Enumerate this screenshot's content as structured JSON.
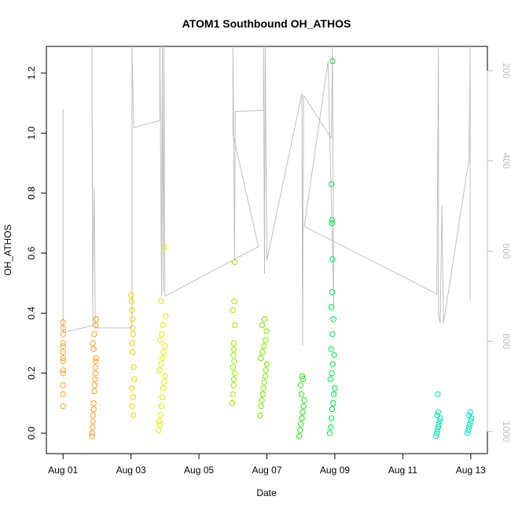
{
  "chart_data": {
    "type": "scatter",
    "title": "ATOM1 Southbound OH_ATHOS",
    "x_label": "Date",
    "y_label": "OH_ATHOS",
    "xlim": [
      0.51,
      13.49
    ],
    "xticks": [
      {
        "value": 1,
        "label": "Aug 01"
      },
      {
        "value": 3,
        "label": "Aug 03"
      },
      {
        "value": 5,
        "label": "Aug 05"
      },
      {
        "value": 7,
        "label": "Aug 07"
      },
      {
        "value": 9,
        "label": "Aug 09"
      },
      {
        "value": 11,
        "label": "Aug 11"
      },
      {
        "value": 13,
        "label": "Aug 13"
      }
    ],
    "ylim": [
      -0.068,
      1.289
    ],
    "yticks": [
      {
        "value": 0,
        "label": "0.0"
      },
      0.2,
      0.4,
      0.6,
      0.8,
      {
        "value": 1,
        "label": "1.0"
      },
      1.2
    ],
    "y2lim": [
      1049,
      146
    ],
    "y2ticks": [
      200,
      400,
      600,
      800,
      1000
    ],
    "groups": [
      {
        "color": "#f4a030",
        "x": [
          1.0,
          1.0,
          1.0,
          1.0,
          1.0,
          1.0,
          1.0,
          1.0,
          1.0,
          1.0,
          1.0,
          1.0,
          1.0
        ],
        "y": [
          0.37,
          0.35,
          0.33,
          0.3,
          0.29,
          0.27,
          0.25,
          0.24,
          0.21,
          0.2,
          0.16,
          0.13,
          0.09
        ]
      },
      {
        "color": "#f5a020",
        "x": [
          1.85,
          1.86,
          1.87,
          1.88,
          1.88,
          1.9,
          1.9,
          1.92,
          1.93,
          1.94,
          1.95,
          1.95,
          1.96,
          1.97,
          1.9,
          1.88,
          1.92,
          1.96,
          1.98
        ],
        "y": [
          -0.01,
          0.0,
          0.02,
          0.04,
          0.06,
          0.08,
          0.1,
          0.14,
          0.16,
          0.18,
          0.2,
          0.22,
          0.24,
          0.25,
          0.28,
          0.3,
          0.33,
          0.36,
          0.38
        ]
      },
      {
        "color": "#ecd000",
        "x": [
          3.0,
          3.02,
          3.03,
          3.04,
          3.05,
          3.06,
          3.03,
          3.05,
          3.08,
          3.1,
          3.02,
          3.06,
          3.04,
          3.07
        ],
        "y": [
          0.46,
          0.44,
          0.41,
          0.38,
          0.35,
          0.33,
          0.3,
          0.27,
          0.22,
          0.18,
          0.15,
          0.12,
          0.09,
          0.06
        ]
      },
      {
        "color": "#d8ec00",
        "x": [
          3.82,
          3.85,
          3.87,
          3.9,
          3.92,
          3.95,
          3.97,
          4.0,
          3.84,
          3.88,
          3.93,
          3.96,
          3.99,
          3.86,
          3.91,
          3.94,
          4.02,
          3.89,
          3.83,
          3.98
        ],
        "y": [
          0.01,
          0.03,
          0.06,
          0.09,
          0.12,
          0.15,
          0.17,
          0.19,
          0.21,
          0.23,
          0.25,
          0.27,
          0.29,
          0.31,
          0.33,
          0.36,
          0.39,
          0.44,
          0.04,
          0.62
        ]
      },
      {
        "color": "#98e800",
        "x": [
          5.98,
          6.0,
          6.02,
          6.03,
          6.05,
          6.0,
          6.04,
          6.01,
          6.03,
          6.02,
          6.06,
          6.0,
          6.04,
          6.05
        ],
        "y": [
          0.1,
          0.13,
          0.16,
          0.18,
          0.2,
          0.22,
          0.24,
          0.26,
          0.28,
          0.3,
          0.36,
          0.41,
          0.44,
          0.57
        ]
      },
      {
        "color": "#78e400",
        "x": [
          6.8,
          6.83,
          6.85,
          6.88,
          6.9,
          6.92,
          6.95,
          6.97,
          7.0,
          6.82,
          6.87,
          6.91,
          6.96,
          6.99,
          6.86,
          6.93
        ],
        "y": [
          0.06,
          0.09,
          0.11,
          0.13,
          0.15,
          0.17,
          0.19,
          0.21,
          0.23,
          0.25,
          0.27,
          0.29,
          0.31,
          0.34,
          0.36,
          0.38
        ]
      },
      {
        "color": "#28e020",
        "x": [
          7.95,
          7.98,
          8.0,
          8.03,
          8.05,
          8.08,
          8.1,
          8.02,
          7.99,
          8.06,
          8.04
        ],
        "y": [
          -0.01,
          0.01,
          0.03,
          0.05,
          0.07,
          0.09,
          0.11,
          0.13,
          0.16,
          0.18,
          0.19
        ]
      },
      {
        "color": "#00e040",
        "x": [
          8.85,
          8.88,
          8.9,
          8.92,
          8.95,
          8.97,
          9.0,
          8.87,
          8.91,
          8.94,
          8.98,
          8.89,
          8.93,
          8.96,
          8.9,
          8.92,
          8.93,
          8.91,
          8.92,
          8.9,
          8.93
        ],
        "y": [
          0.0,
          0.02,
          0.05,
          0.08,
          0.1,
          0.13,
          0.15,
          0.18,
          0.2,
          0.23,
          0.26,
          0.28,
          0.33,
          0.38,
          0.42,
          0.47,
          0.58,
          0.7,
          0.71,
          0.83,
          1.24
        ]
      },
      {
        "color": "#00e0a8",
        "x": [
          11.98,
          12.0,
          12.02,
          12.04,
          12.06,
          12.08,
          12.1,
          12.01,
          12.05,
          12.03
        ],
        "y": [
          -0.01,
          0.0,
          0.01,
          0.02,
          0.03,
          0.04,
          0.05,
          0.06,
          0.07,
          0.13
        ]
      },
      {
        "color": "#00e0c0",
        "x": [
          12.9,
          12.93,
          12.95,
          12.97,
          13.0,
          13.02,
          12.94,
          12.99
        ],
        "y": [
          0.0,
          0.01,
          0.02,
          0.03,
          0.04,
          0.05,
          0.06,
          0.07
        ]
      }
    ],
    "line": {
      "color": "#bebebe",
      "axis": "y2",
      "x": [
        1.0,
        1.0,
        1.88,
        1.85,
        1.87,
        1.92,
        1.95,
        3.03,
        3.03,
        3.08,
        3.85,
        3.85,
        3.9,
        3.92,
        3.95,
        3.97,
        4.0,
        6.75,
        6.0,
        6.0,
        6.05,
        6.07,
        6.9,
        6.9,
        6.93,
        6.95,
        7.0,
        8.03,
        8.05,
        8.08,
        8.9,
        8.93,
        8.97,
        8.8,
        8.1,
        12.0,
        12.05,
        12.05,
        12.1,
        12.15,
        12.2,
        12.95,
        12.98,
        12.98
      ],
      "values": [
        285,
        780,
        765,
        146,
        700,
        460,
        770,
        770,
        146,
        326,
        310,
        146,
        700,
        146,
        690,
        146,
        700,
        590,
        340,
        146,
        620,
        290,
        288,
        146,
        650,
        146,
        620,
        250,
        810,
        255,
        350,
        146,
        720,
        180,
        545,
        695,
        146,
        740,
        760,
        500,
        760,
        395,
        146,
        710
      ]
    }
  }
}
